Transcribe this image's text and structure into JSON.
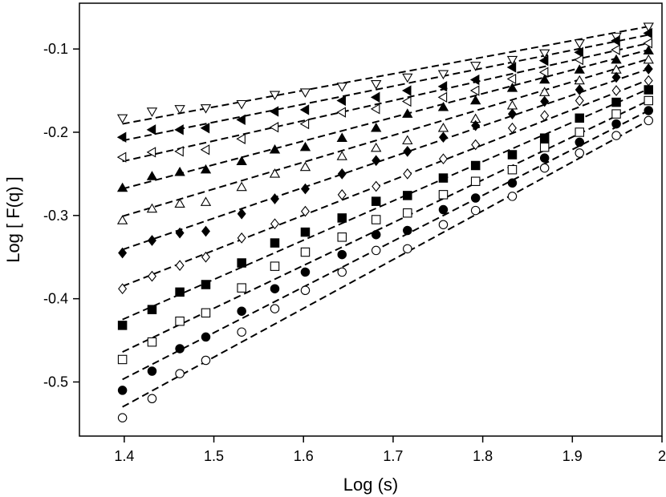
{
  "chart_data": {
    "type": "scatter",
    "xlabel": "Log (s)",
    "ylabel": "Log [ F(q) ]",
    "xlim": [
      1.35,
      2.0
    ],
    "ylim": [
      -0.565,
      -0.045
    ],
    "x_ticks": [
      1.4,
      1.5,
      1.6,
      1.7,
      1.8,
      1.9,
      2.0
    ],
    "x_tick_labels": [
      "1.4",
      "1.5",
      "1.6",
      "1.7",
      "1.8",
      "1.9",
      "2"
    ],
    "y_ticks": [
      -0.5,
      -0.4,
      -0.3,
      -0.2,
      -0.1
    ],
    "y_tick_labels": [
      "-0.5",
      "-0.4",
      "-0.3",
      "-0.2",
      "-0.1"
    ],
    "grid": false,
    "legend": "none",
    "x": [
      1.398,
      1.431,
      1.462,
      1.491,
      1.531,
      1.568,
      1.602,
      1.643,
      1.681,
      1.716,
      1.756,
      1.792,
      1.833,
      1.869,
      1.908,
      1.949,
      1.985
    ],
    "series": [
      {
        "marker": "triangle-down-open",
        "values": [
          -0.183,
          -0.175,
          -0.172,
          -0.171,
          -0.166,
          -0.155,
          -0.152,
          -0.145,
          -0.142,
          -0.134,
          -0.13,
          -0.12,
          -0.113,
          -0.105,
          -0.093,
          -0.085,
          -0.073
        ],
        "fit": [
          -0.19,
          -0.073
        ]
      },
      {
        "marker": "triangle-left-filled",
        "values": [
          -0.206,
          -0.197,
          -0.197,
          -0.195,
          -0.185,
          -0.175,
          -0.173,
          -0.162,
          -0.158,
          -0.15,
          -0.145,
          -0.137,
          -0.122,
          -0.114,
          -0.104,
          -0.09,
          -0.081
        ],
        "fit": [
          -0.21,
          -0.083
        ]
      },
      {
        "marker": "triangle-left-open",
        "values": [
          -0.23,
          -0.224,
          -0.223,
          -0.221,
          -0.208,
          -0.194,
          -0.19,
          -0.176,
          -0.172,
          -0.163,
          -0.158,
          -0.15,
          -0.136,
          -0.128,
          -0.113,
          -0.101,
          -0.093
        ],
        "fit": [
          -0.235,
          -0.093
        ]
      },
      {
        "marker": "triangle-up-filled",
        "values": [
          -0.267,
          -0.253,
          -0.248,
          -0.245,
          -0.235,
          -0.221,
          -0.218,
          -0.207,
          -0.195,
          -0.178,
          -0.17,
          -0.162,
          -0.147,
          -0.137,
          -0.125,
          -0.113,
          -0.102
        ],
        "fit": [
          -0.268,
          -0.101
        ]
      },
      {
        "marker": "triangle-up-open",
        "values": [
          -0.306,
          -0.292,
          -0.286,
          -0.284,
          -0.266,
          -0.25,
          -0.242,
          -0.229,
          -0.219,
          -0.21,
          -0.195,
          -0.184,
          -0.168,
          -0.152,
          -0.138,
          -0.125,
          -0.113
        ],
        "fit": [
          -0.301,
          -0.112
        ]
      },
      {
        "marker": "diamond-filled",
        "values": [
          -0.345,
          -0.33,
          -0.321,
          -0.319,
          -0.298,
          -0.28,
          -0.268,
          -0.25,
          -0.234,
          -0.223,
          -0.206,
          -0.192,
          -0.178,
          -0.163,
          -0.149,
          -0.134,
          -0.124
        ],
        "fit": [
          -0.341,
          -0.124
        ]
      },
      {
        "marker": "diamond-open",
        "values": [
          -0.388,
          -0.373,
          -0.36,
          -0.35,
          -0.327,
          -0.31,
          -0.295,
          -0.275,
          -0.265,
          -0.25,
          -0.232,
          -0.215,
          -0.195,
          -0.18,
          -0.162,
          -0.15,
          -0.138
        ],
        "fit": [
          -0.385,
          -0.137
        ]
      },
      {
        "marker": "square-filled",
        "values": [
          -0.432,
          -0.413,
          -0.392,
          -0.383,
          -0.357,
          -0.333,
          -0.32,
          -0.303,
          -0.283,
          -0.276,
          -0.255,
          -0.24,
          -0.227,
          -0.207,
          -0.183,
          -0.164,
          -0.149
        ],
        "fit": [
          -0.425,
          -0.148
        ]
      },
      {
        "marker": "square-open",
        "values": [
          -0.473,
          -0.452,
          -0.427,
          -0.417,
          -0.387,
          -0.361,
          -0.344,
          -0.326,
          -0.305,
          -0.297,
          -0.275,
          -0.259,
          -0.245,
          -0.218,
          -0.2,
          -0.178,
          -0.162
        ],
        "fit": [
          -0.464,
          -0.162
        ]
      },
      {
        "marker": "circle-filled",
        "values": [
          -0.51,
          -0.487,
          -0.46,
          -0.446,
          -0.415,
          -0.388,
          -0.368,
          -0.347,
          -0.323,
          -0.318,
          -0.293,
          -0.279,
          -0.261,
          -0.231,
          -0.212,
          -0.19,
          -0.174
        ],
        "fit": [
          -0.497,
          -0.174
        ]
      },
      {
        "marker": "circle-open",
        "values": [
          -0.543,
          -0.52,
          -0.49,
          -0.474,
          -0.44,
          -0.412,
          -0.39,
          -0.368,
          -0.342,
          -0.34,
          -0.311,
          -0.294,
          -0.277,
          -0.243,
          -0.225,
          -0.204,
          -0.186
        ],
        "fit": [
          -0.53,
          -0.186
        ]
      }
    ]
  }
}
